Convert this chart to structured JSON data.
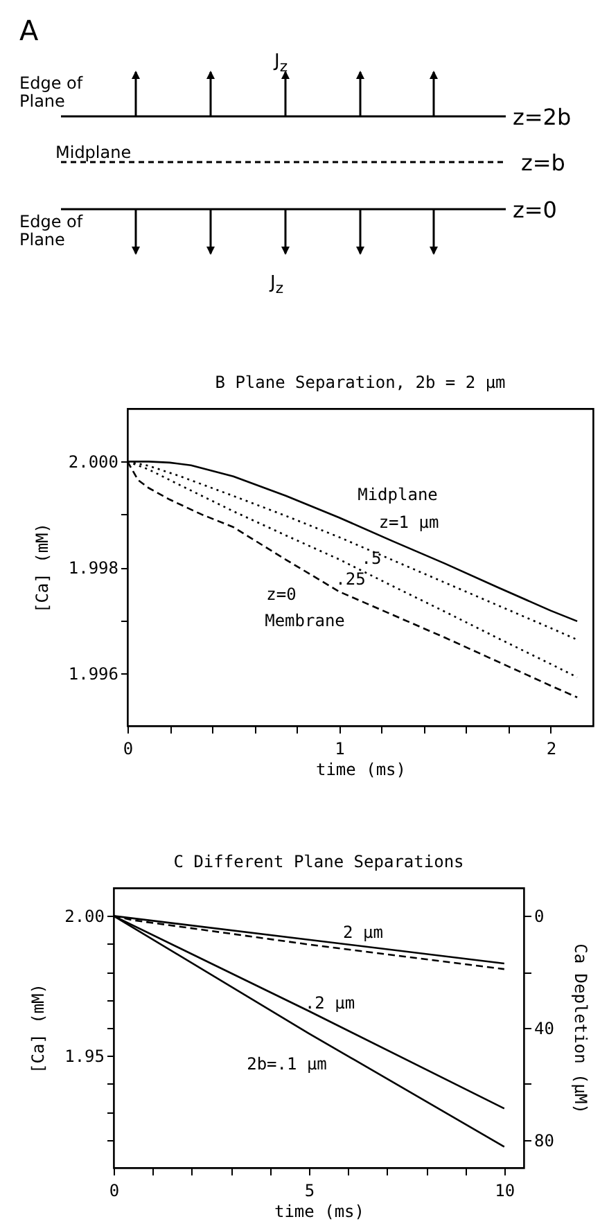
{
  "chart_data": [
    {
      "type": "other",
      "annotations": [
        "A",
        "J$_{z}$",
        "Edge of Plane",
        "z=2b",
        "Midplane",
        "z=b",
        "z=0",
        "Edge of Plane",
        "J$_{z}$"
      ]
    },
    {
      "type": "line",
      "title": "B  Plane Separation, 2b = 2 µm",
      "xlabel": "time (ms)",
      "ylabel": "[Ca]   (mM)",
      "xlim": [
        0,
        2.2
      ],
      "ylim": [
        1.995,
        2.001
      ],
      "xticks": [
        0,
        {
          "value": 0.2,
          "label": null
        },
        {
          "value": 0.4,
          "label": null
        },
        {
          "value": 0.6,
          "label": null
        },
        {
          "value": 0.8,
          "label": null
        },
        1,
        {
          "value": 1.2,
          "label": null
        },
        {
          "value": 1.4,
          "label": null
        },
        {
          "value": 1.6,
          "label": null
        },
        {
          "value": 1.8,
          "label": null
        },
        2
      ],
      "yticks": [
        {
          "value": 1.996,
          "label": "1.996"
        },
        {
          "value": 1.997,
          "label": null
        },
        {
          "value": 1.998,
          "label": "1.998"
        },
        {
          "value": 1.999,
          "label": null
        },
        {
          "value": 2.0,
          "label": "2.000"
        }
      ],
      "series": [
        {
          "color": "#000000",
          "line_style": "solid",
          "x": [
            0,
            0.1,
            0.2,
            0.3,
            0.5,
            0.75,
            1.0,
            1.25,
            1.5,
            1.75,
            2.0,
            2.125
          ],
          "values": [
            2.0,
            2.0,
            1.99998,
            1.99993,
            1.99972,
            1.99935,
            1.99894,
            1.9985,
            1.99807,
            1.99762,
            1.99718,
            1.99698
          ]
        },
        {
          "color": "#000000",
          "line_style": "dotted",
          "x": [
            0,
            0.1,
            0.25,
            0.5,
            0.75,
            1.0,
            1.25,
            1.5,
            1.75,
            2.0,
            2.125
          ],
          "values": [
            2.0,
            1.99992,
            1.99972,
            1.99935,
            1.99897,
            1.99857,
            1.99814,
            1.99771,
            1.99728,
            1.99685,
            1.99663
          ]
        },
        {
          "color": "#000000",
          "line_style": "dotted",
          "x": [
            0,
            0.1,
            0.25,
            0.5,
            0.75,
            1.0,
            1.25,
            1.5,
            1.75,
            2.0,
            2.125
          ],
          "values": [
            2.0,
            1.99985,
            1.99955,
            1.99906,
            1.9986,
            1.99815,
            1.99765,
            1.99716,
            1.99666,
            1.99617,
            1.99592
          ]
        },
        {
          "color": "#000000",
          "line_style": "dashed",
          "x": [
            0,
            0.05,
            0.1,
            0.2,
            0.35,
            0.5,
            0.75,
            1.0,
            1.5,
            2.0,
            2.125
          ],
          "values": [
            2.0,
            1.99965,
            1.9995,
            1.99928,
            1.999,
            1.99876,
            1.99814,
            1.99754,
            1.99667,
            1.99576,
            1.99554
          ]
        }
      ],
      "annotations": [
        "Midplane",
        "z=1 µm",
        ".5",
        ".25",
        "z=0",
        "Membrane"
      ]
    },
    {
      "type": "line",
      "title": "C  Different Plane Separations",
      "xlabel": "time (ms)",
      "ylabel": "[Ca]   (mM)",
      "y2label": "Ca Depletion (µM)",
      "xlim": [
        0,
        10.5
      ],
      "ylim": [
        1.91,
        2.01
      ],
      "y2lim": [
        90,
        -10
      ],
      "xticks": [
        0,
        {
          "value": 1,
          "label": null
        },
        {
          "value": 2,
          "label": null
        },
        {
          "value": 3,
          "label": null
        },
        {
          "value": 4,
          "label": null
        },
        5,
        {
          "value": 6,
          "label": null
        },
        {
          "value": 7,
          "label": null
        },
        {
          "value": 8,
          "label": null
        },
        {
          "value": 9,
          "label": null
        },
        10
      ],
      "yticks": [
        {
          "value": 1.92,
          "label": null
        },
        {
          "value": 1.93,
          "label": null
        },
        {
          "value": 1.94,
          "label": null
        },
        {
          "value": 1.95,
          "label": "1.95"
        },
        {
          "value": 1.96,
          "label": null
        },
        {
          "value": 1.97,
          "label": null
        },
        {
          "value": 1.98,
          "label": null
        },
        {
          "value": 1.99,
          "label": null
        },
        {
          "value": 2.0,
          "label": "2.00"
        }
      ],
      "y2ticks": [
        0,
        {
          "value": 20,
          "label": null
        },
        40,
        {
          "value": 60,
          "label": null
        },
        80
      ],
      "series": [
        {
          "color": "#000000",
          "line_style": "solid",
          "x": [
            0,
            5,
            10
          ],
          "values": [
            2.0,
            1.9915,
            1.983
          ]
        },
        {
          "color": "#000000",
          "line_style": "dashed",
          "x": [
            0,
            0.5,
            5,
            10
          ],
          "values": [
            2.0,
            1.9985,
            1.9898,
            1.981
          ]
        },
        {
          "color": "#000000",
          "line_style": "solid",
          "x": [
            0,
            5,
            10
          ],
          "values": [
            2.0,
            1.966,
            1.9312
          ]
        },
        {
          "color": "#000000",
          "line_style": "solid",
          "x": [
            0,
            5,
            10
          ],
          "values": [
            2.0,
            1.958,
            1.9175
          ]
        }
      ],
      "annotations": [
        "2 µm",
        ".2 µm",
        "2b=.1 µm"
      ]
    }
  ]
}
